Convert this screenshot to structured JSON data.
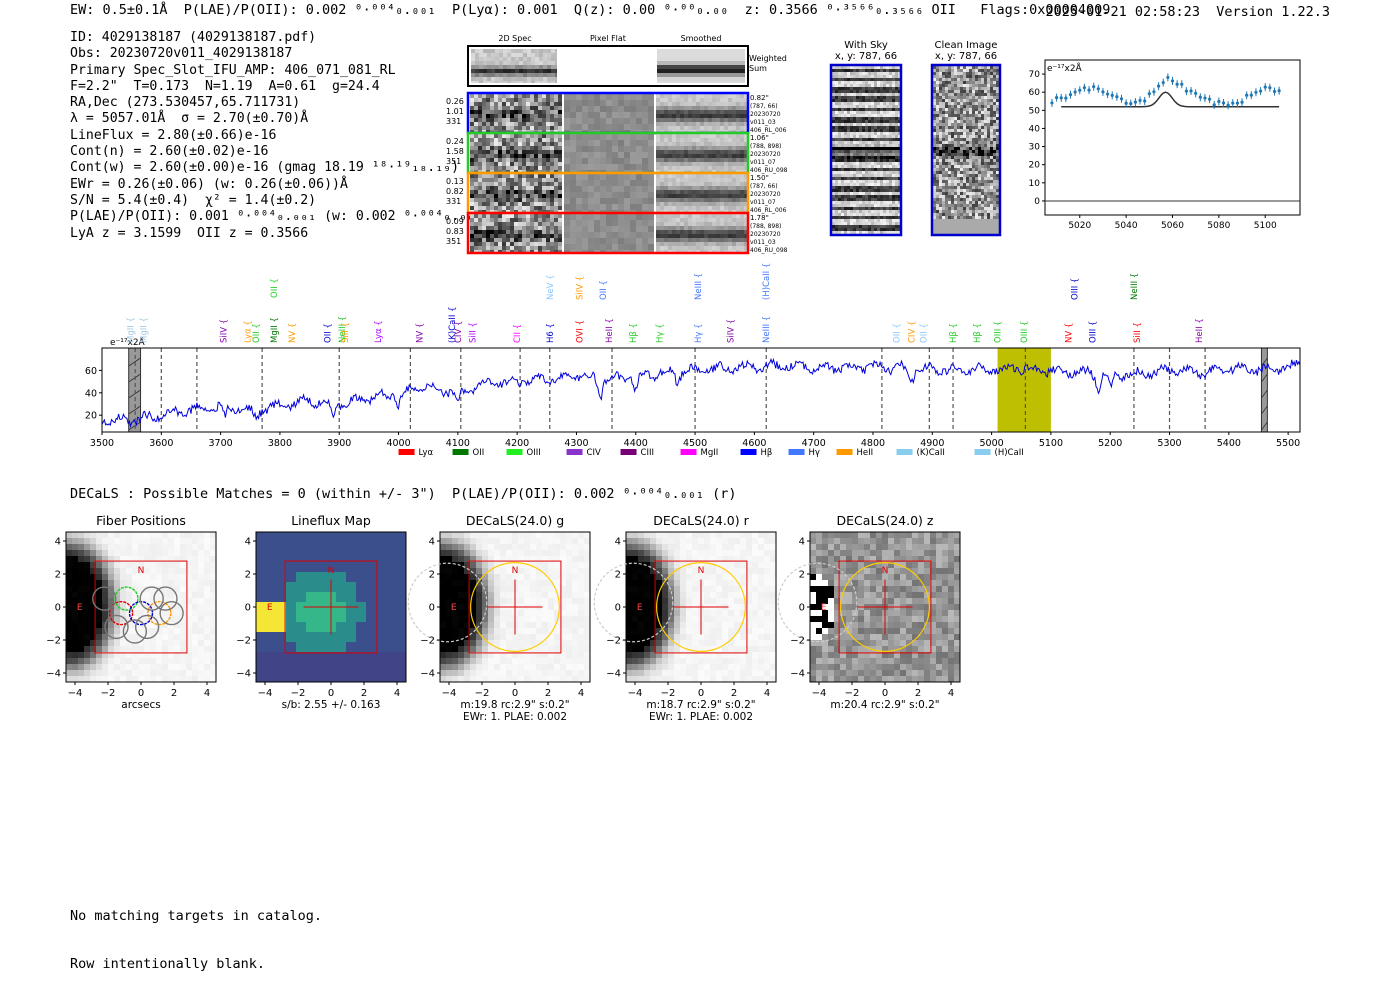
{
  "header": {
    "left": "EW: 0.5±0.1Å  P(LAE)/P(OII): 0.002 ⁰·⁰⁰⁴₀.₀₀₁  P(Lyα): 0.001  Q(z): 0.00 ⁰·⁰⁰₀.₀₀  z: 0.3566 ⁰·³⁵⁶⁶₀.₃₅₆₆ OII   Flags:0x00004009",
    "right": "2025-01-21 02:58:23  Version 1.22.3"
  },
  "info": [
    "ID: 4029138187 (4029138187.pdf)",
    "Obs: 20230720v011_4029138187",
    "Primary Spec_Slot_IFU_AMP: 406_071_081_RL",
    "F=2.2\"  T=0.173  N=1.19  A=0.61  g=24.4",
    "RA,Dec (273.530457,65.711731)",
    "λ = 5057.01Å  σ = 2.70(±0.70)Å",
    "LineFlux = 2.80(±0.66)e-16",
    "Cont(n) = 2.60(±0.02)e-16",
    "Cont(w) = 2.60(±0.00)e-16 (gmag 18.19 ¹⁸·¹⁹₁₈.₁₉)",
    "EWr = 0.26(±0.06) (w: 0.26(±0.06))Å",
    "S/N = 5.4(±0.4)  χ² = 1.4(±0.2)",
    "P(LAE)/P(OII): 0.001 ⁰·⁰⁰⁴₀.₀₀₁ (w: 0.002 ⁰·⁰⁰⁴₀.₀₀₁)",
    "LyA z = 3.1599  OII z = 0.3566"
  ],
  "cutouts": {
    "col_labels": [
      "2D Spec",
      "Pixel Flat",
      "Smoothed"
    ],
    "weighted_label": [
      "Weighted",
      "Sum"
    ],
    "rows": [
      {
        "left": [
          "0.26",
          "1.01",
          "331"
        ],
        "right": [
          "0.82\"",
          "(787, 66)",
          "20230720",
          "v011_03",
          "406_RL_006"
        ],
        "color": "#0000ff"
      },
      {
        "left": [
          "0.24",
          "1.58",
          "351"
        ],
        "right": [
          "1.06\"",
          "(788, 898)",
          "20230720",
          "v011_07",
          "406_RU_098"
        ],
        "color": "#22cc22"
      },
      {
        "left": [
          "0.13",
          "0.82",
          "331"
        ],
        "right": [
          "1.50\"",
          "(787, 66)",
          "20230720",
          "v011_07",
          "406_RL_006"
        ],
        "color": "#ff9900"
      },
      {
        "left": [
          "0.09",
          "0.83",
          "351"
        ],
        "right": [
          "1.78\"",
          "(788, 898)",
          "20230720",
          "v011_03",
          "406_RU_098"
        ],
        "color": "#ff0000"
      }
    ],
    "sky_title": "With Sky",
    "sky_coords": "x, y: 787, 66",
    "clean_title": "Clean Image",
    "clean_coords": "x, y: 787, 66"
  },
  "zoom_plot": {
    "unit_label": "e⁻¹⁷x2Å",
    "yticks": [
      "0",
      "10",
      "20",
      "30",
      "40",
      "50",
      "60",
      "70"
    ],
    "xticks": [
      "5020",
      "5040",
      "5060",
      "5080",
      "5100"
    ]
  },
  "chart_data": {
    "type": "line",
    "title": "",
    "xlabel": "",
    "ylabel": "e⁻¹⁷x2Å",
    "xlim": [
      3500,
      5520
    ],
    "ylim": [
      0,
      80
    ],
    "xticks": [
      3500,
      3600,
      3700,
      3800,
      3900,
      4000,
      4100,
      4200,
      4300,
      4400,
      4500,
      4600,
      4700,
      4800,
      4900,
      5000,
      5100,
      5200,
      5300,
      5400,
      5500
    ],
    "yticks": [
      20,
      40,
      60
    ],
    "series_color": "#0000dd",
    "anchors_x": [
      3500,
      3560,
      3600,
      3650,
      3700,
      3750,
      3800,
      3850,
      3900,
      3950,
      4000,
      4050,
      4100,
      4150,
      4200,
      4250,
      4300,
      4350,
      4400,
      4450,
      4500,
      4550,
      4600,
      4650,
      4700,
      4750,
      4800,
      4850,
      4900,
      4950,
      5000,
      5050,
      5100,
      5150,
      5200,
      5250,
      5300,
      5350,
      5400,
      5450,
      5500,
      5520
    ],
    "anchors_y": [
      15,
      16,
      20,
      25,
      28,
      24,
      28,
      33,
      30,
      35,
      40,
      45,
      40,
      48,
      50,
      52,
      55,
      52,
      55,
      58,
      60,
      62,
      63,
      64,
      63,
      62,
      63,
      62,
      61,
      60,
      61,
      62,
      60,
      58,
      56,
      57,
      60,
      58,
      62,
      61,
      63,
      64
    ],
    "absorption_dips": [
      [
        3707,
        10
      ],
      [
        3760,
        8
      ],
      [
        3890,
        12
      ],
      [
        4000,
        10
      ],
      [
        4100,
        8
      ],
      [
        4340,
        15
      ],
      [
        4400,
        12
      ],
      [
        4470,
        8
      ],
      [
        4865,
        10
      ],
      [
        5180,
        15
      ],
      [
        5200,
        12
      ]
    ],
    "dashed_lines": [
      3556,
      3600,
      3660,
      3770,
      3900,
      4020,
      4105,
      4205,
      4255,
      4360,
      4500,
      4620,
      4815,
      4895,
      4935,
      5057,
      5240,
      5300,
      5360
    ],
    "gray_bands": [
      [
        3545,
        3565
      ],
      [
        5455,
        5465
      ]
    ],
    "highlight_band": {
      "range": [
        5010,
        5100
      ],
      "color": "#bdbf00"
    },
    "line_labels": [
      {
        "x": 3548,
        "text": "MgII",
        "color": "#a0c8e0",
        "tier": 1
      },
      {
        "x": 3570,
        "text": "MgII",
        "color": "#a0c8e0",
        "tier": 1
      },
      {
        "x": 3705,
        "text": "SiIV",
        "color": "#8800aa",
        "tier": 1
      },
      {
        "x": 3745,
        "text": "Lyα",
        "color": "#ff9900",
        "tier": 1
      },
      {
        "x": 3760,
        "text": "OII",
        "color": "#22cc22",
        "tier": 1
      },
      {
        "x": 3790,
        "text": "MgII",
        "color": "#007700",
        "tier": 1
      },
      {
        "x": 3790,
        "text": "OII",
        "color": "#22cc22",
        "tier": 3
      },
      {
        "x": 3820,
        "text": "NV",
        "color": "#ff9900",
        "tier": 1
      },
      {
        "x": 3880,
        "text": "OII",
        "color": "#0000cc",
        "tier": 1
      },
      {
        "x": 3905,
        "text": "NeIII",
        "color": "#22cc22",
        "tier": 1
      },
      {
        "x": 3910,
        "text": "SiII",
        "color": "#ff9900",
        "tier": 1
      },
      {
        "x": 3965,
        "text": "Lyα",
        "color": "#aa00ff",
        "tier": 1
      },
      {
        "x": 4035,
        "text": "NV",
        "color": "#8800aa",
        "tier": 1
      },
      {
        "x": 4090,
        "text": "(K)CaII",
        "color": "#0000cc",
        "tier": 1
      },
      {
        "x": 4100,
        "text": "CIV",
        "color": "#8800aa",
        "tier": 1
      },
      {
        "x": 4125,
        "text": "SiII",
        "color": "#aa00ff",
        "tier": 1
      },
      {
        "x": 4200,
        "text": "CII",
        "color": "#ff00ff",
        "tier": 1
      },
      {
        "x": 4255,
        "text": "NeV",
        "color": "#88c8ff",
        "tier": 2
      },
      {
        "x": 4255,
        "text": "H6",
        "color": "#0000cc",
        "tier": 1
      },
      {
        "x": 4305,
        "text": "SiIV",
        "color": "#ff9900",
        "tier": 2
      },
      {
        "x": 4305,
        "text": "OVI",
        "color": "#ff0000",
        "tier": 1
      },
      {
        "x": 4345,
        "text": "OII",
        "color": "#4477ff",
        "tier": 2
      },
      {
        "x": 4355,
        "text": "HeII",
        "color": "#8800aa",
        "tier": 1
      },
      {
        "x": 4395,
        "text": "Hβ",
        "color": "#22cc22",
        "tier": 1
      },
      {
        "x": 4440,
        "text": "Hγ",
        "color": "#22cc22",
        "tier": 1
      },
      {
        "x": 4505,
        "text": "NeIII",
        "color": "#4477ff",
        "tier": 2
      },
      {
        "x": 4505,
        "text": "Hγ",
        "color": "#4477ff",
        "tier": 1
      },
      {
        "x": 4560,
        "text": "SiIV",
        "color": "#8800aa",
        "tier": 1
      },
      {
        "x": 4620,
        "text": "(H)CaII",
        "color": "#4477ff",
        "tier": 2
      },
      {
        "x": 4620,
        "text": "NeIII",
        "color": "#4477ff",
        "tier": 1
      },
      {
        "x": 4840,
        "text": "OII",
        "color": "#88c8ff",
        "tier": 1
      },
      {
        "x": 4865,
        "text": "CIV",
        "color": "#ff9900",
        "tier": 1
      },
      {
        "x": 4885,
        "text": "OII",
        "color": "#88c8ff",
        "tier": 1
      },
      {
        "x": 4935,
        "text": "Hβ",
        "color": "#22cc22",
        "tier": 1
      },
      {
        "x": 4975,
        "text": "Hβ",
        "color": "#22cc22",
        "tier": 1
      },
      {
        "x": 5010,
        "text": "OIII",
        "color": "#22cc22",
        "tier": 1
      },
      {
        "x": 5055,
        "text": "OIII",
        "color": "#22cc22",
        "tier": 1
      },
      {
        "x": 5140,
        "text": "OIII",
        "color": "#0000cc",
        "tier": 2
      },
      {
        "x": 5130,
        "text": "NV",
        "color": "#ff0000",
        "tier": 1
      },
      {
        "x": 5170,
        "text": "OIII",
        "color": "#0000cc",
        "tier": 1
      },
      {
        "x": 5240,
        "text": "NeIII",
        "color": "#007700",
        "tier": 2
      },
      {
        "x": 5245,
        "text": "SiII",
        "color": "#ff0000",
        "tier": 1
      },
      {
        "x": 5350,
        "text": "HeII",
        "color": "#8800aa",
        "tier": 1
      }
    ],
    "legend": [
      {
        "label": "Lyα",
        "color": "#ff0000"
      },
      {
        "label": "OII",
        "color": "#007700"
      },
      {
        "label": "OIII",
        "color": "#22ee22"
      },
      {
        "label": "CIV",
        "color": "#8833cc"
      },
      {
        "label": "CIII",
        "color": "#770077"
      },
      {
        "label": "MgII",
        "color": "#ff00ff"
      },
      {
        "label": "Hβ",
        "color": "#0000ff"
      },
      {
        "label": "Hγ",
        "color": "#4477ff"
      },
      {
        "label": "HeII",
        "color": "#ff9900"
      },
      {
        "label": "(K)CaII",
        "color": "#88ccee"
      },
      {
        "label": "(H)CaII",
        "color": "#88ccee"
      }
    ]
  },
  "decals": {
    "title": "DECaLS : Possible Matches = 0 (within +/- 3\")  P(LAE)/P(OII): 0.002 ⁰·⁰⁰⁴₀.₀₀₁ (r)",
    "panels": [
      {
        "title": "Fiber Positions",
        "caption1": "arcsecs",
        "caption2": "",
        "variant": "fiber"
      },
      {
        "title": "Lineflux Map",
        "caption1": "s/b: 2.55 +/- 0.163",
        "caption2": "",
        "variant": "lineflux"
      },
      {
        "title": "DECaLS(24.0) g",
        "caption1": "m:19.8 rc:2.9\"  s:0.2\"",
        "caption2": "EWr: 1. PLAE: 0.002",
        "variant": "g"
      },
      {
        "title": "DECaLS(24.0) r",
        "caption1": "m:18.7 rc:2.9\"  s:0.2\"",
        "caption2": "EWr: 1. PLAE: 0.002",
        "variant": "r"
      },
      {
        "title": "DECaLS(24.0) z",
        "caption1": "m:20.4 rc:2.9\"  s:0.2\"",
        "caption2": "",
        "variant": "z"
      }
    ],
    "axis_ticks": [
      "4",
      "2",
      "0",
      "−2",
      "−4"
    ],
    "axis_xticks": [
      "−4",
      "−2",
      "0",
      "2",
      "4"
    ],
    "north": "N",
    "east": "E"
  },
  "footer": [
    "No matching targets in catalog.",
    "Row intentionally blank."
  ]
}
